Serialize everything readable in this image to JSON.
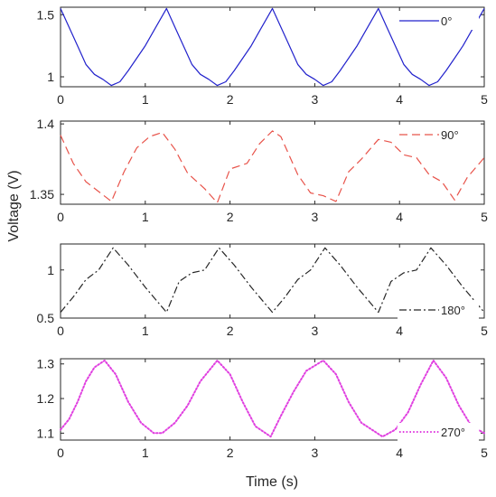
{
  "chart_data": {
    "type": "line",
    "xlabel": "Time (s)",
    "ylabel": "Voltage (V)",
    "xlim": [
      0,
      5
    ],
    "xticks": [
      "0",
      "1",
      "2",
      "3",
      "4",
      "5"
    ],
    "grid": false,
    "panels": [
      {
        "name": "0°",
        "legend": "top-right",
        "color": "#2222cc",
        "dash": "solid",
        "ylim": [
          0.92,
          1.56
        ],
        "yticks": [
          1,
          1.5
        ],
        "ytick_labels": [
          "1",
          "1.5"
        ],
        "x": [
          0,
          0.1,
          0.2,
          0.3,
          0.4,
          0.5,
          0.6,
          0.7,
          0.8,
          0.9,
          1.0,
          1.1,
          1.25,
          1.35,
          1.45,
          1.55,
          1.65,
          1.75,
          1.85,
          1.95,
          2.05,
          2.15,
          2.25,
          2.35,
          2.5,
          2.6,
          2.7,
          2.8,
          2.9,
          3.0,
          3.1,
          3.2,
          3.3,
          3.4,
          3.5,
          3.6,
          3.75,
          3.85,
          3.95,
          4.05,
          4.15,
          4.25,
          4.35,
          4.45,
          4.55,
          4.65,
          4.75,
          4.85,
          5.0
        ],
        "y": [
          1.55,
          1.4,
          1.25,
          1.1,
          1.02,
          0.98,
          0.93,
          0.96,
          1.05,
          1.15,
          1.25,
          1.37,
          1.55,
          1.4,
          1.25,
          1.1,
          1.02,
          0.98,
          0.93,
          0.96,
          1.05,
          1.15,
          1.25,
          1.37,
          1.55,
          1.4,
          1.25,
          1.1,
          1.02,
          0.98,
          0.93,
          0.96,
          1.05,
          1.15,
          1.25,
          1.37,
          1.55,
          1.4,
          1.25,
          1.1,
          1.02,
          0.98,
          0.93,
          0.96,
          1.05,
          1.15,
          1.25,
          1.37,
          1.55
        ]
      },
      {
        "name": "90°",
        "legend": "top-right",
        "color": "#e8534a",
        "dash": "dashed",
        "ylim": [
          1.343,
          1.402
        ],
        "yticks": [
          1.35,
          1.4
        ],
        "ytick_labels": [
          "1.35",
          "1.4"
        ],
        "x": [
          0,
          0.15,
          0.3,
          0.45,
          0.6,
          0.75,
          0.9,
          1.05,
          1.2,
          1.35,
          1.5,
          1.7,
          1.85,
          2.0,
          2.2,
          2.35,
          2.5,
          2.6,
          2.8,
          2.95,
          3.1,
          3.25,
          3.4,
          3.55,
          3.75,
          3.9,
          4.05,
          4.2,
          4.35,
          4.5,
          4.65,
          4.8,
          5.0
        ],
        "y": [
          1.392,
          1.372,
          1.359,
          1.352,
          1.345,
          1.366,
          1.383,
          1.391,
          1.394,
          1.382,
          1.365,
          1.354,
          1.344,
          1.368,
          1.372,
          1.386,
          1.395,
          1.391,
          1.364,
          1.351,
          1.349,
          1.345,
          1.366,
          1.375,
          1.389,
          1.387,
          1.378,
          1.376,
          1.364,
          1.359,
          1.346,
          1.362,
          1.376
        ]
      },
      {
        "name": "180°",
        "legend": "bottom-right",
        "color": "#262626",
        "dash": "dashdot",
        "ylim": [
          0.5,
          1.27
        ],
        "yticks": [
          0.5,
          1
        ],
        "ytick_labels": [
          "0.5",
          "1"
        ],
        "x": [
          0,
          0.15,
          0.3,
          0.45,
          0.62,
          0.8,
          1.0,
          1.25,
          1.4,
          1.55,
          1.7,
          1.87,
          2.05,
          2.25,
          2.5,
          2.65,
          2.8,
          2.95,
          3.12,
          3.3,
          3.5,
          3.75,
          3.9,
          4.05,
          4.2,
          4.37,
          4.55,
          4.75,
          5.0
        ],
        "y": [
          0.56,
          0.72,
          0.9,
          1.0,
          1.23,
          1.05,
          0.82,
          0.56,
          0.88,
          0.97,
          1.0,
          1.23,
          1.05,
          0.82,
          0.56,
          0.72,
          0.9,
          1.0,
          1.23,
          1.05,
          0.82,
          0.56,
          0.88,
          0.97,
          1.0,
          1.23,
          1.05,
          0.82,
          0.56
        ]
      },
      {
        "name": "270°",
        "legend": "bottom-right",
        "color": "#e040e0",
        "dash": "dotted",
        "ylim": [
          1.08,
          1.315
        ],
        "yticks": [
          1.1,
          1.2,
          1.3
        ],
        "ytick_labels": [
          "1.1",
          "1.2",
          "1.3"
        ],
        "x": [
          0,
          0.1,
          0.2,
          0.3,
          0.4,
          0.52,
          0.65,
          0.8,
          0.95,
          1.1,
          1.2,
          1.35,
          1.5,
          1.65,
          1.85,
          2.0,
          2.15,
          2.3,
          2.48,
          2.6,
          2.75,
          2.9,
          3.1,
          3.25,
          3.4,
          3.55,
          3.8,
          3.95,
          4.1,
          4.25,
          4.4,
          4.55,
          4.7,
          4.85,
          5.0
        ],
        "y": [
          1.11,
          1.14,
          1.19,
          1.25,
          1.29,
          1.31,
          1.27,
          1.19,
          1.13,
          1.1,
          1.1,
          1.13,
          1.18,
          1.25,
          1.31,
          1.27,
          1.19,
          1.12,
          1.09,
          1.15,
          1.22,
          1.28,
          1.31,
          1.27,
          1.19,
          1.13,
          1.09,
          1.11,
          1.16,
          1.24,
          1.31,
          1.26,
          1.18,
          1.12,
          1.1
        ]
      }
    ]
  }
}
